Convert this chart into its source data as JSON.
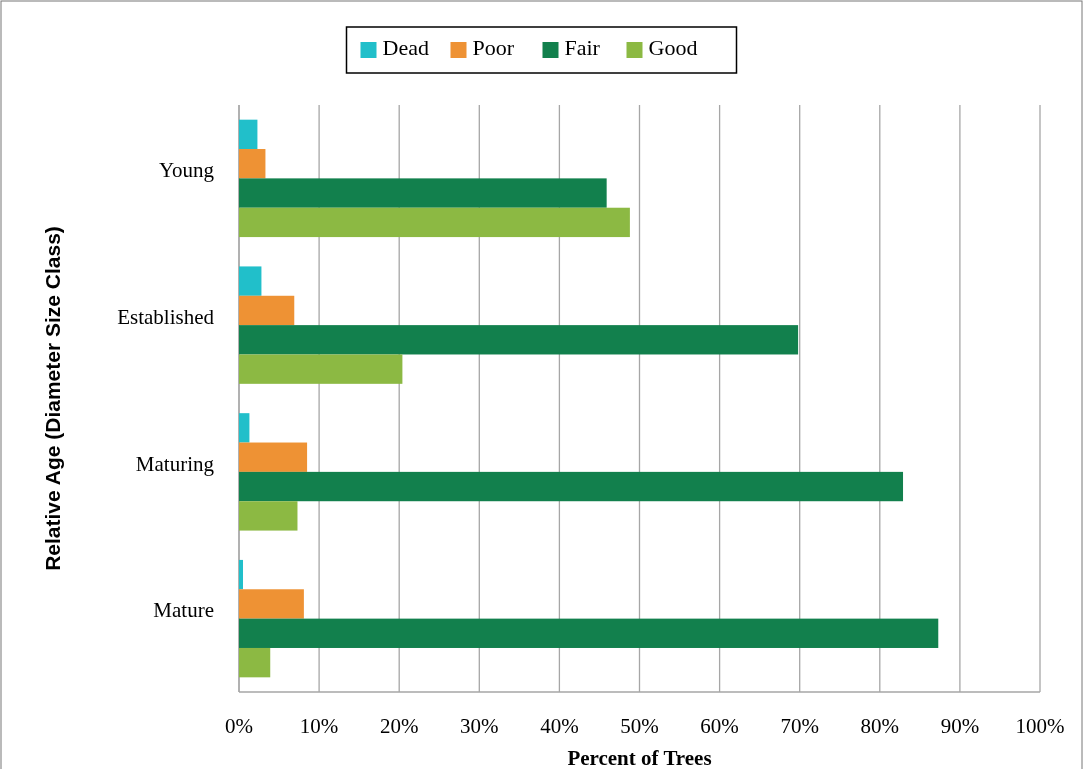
{
  "chart_data": {
    "type": "bar",
    "orientation": "horizontal",
    "xlabel": "Percent of Trees",
    "ylabel": "Relative Age (Diameter Size Class)",
    "categories": [
      "Young",
      "Established",
      "Maturing",
      "Mature"
    ],
    "series": [
      {
        "name": "Dead",
        "color": "#21bfca",
        "values": [
          2.3,
          2.8,
          1.3,
          0.5
        ]
      },
      {
        "name": "Poor",
        "color": "#ee9234",
        "values": [
          3.3,
          6.9,
          8.5,
          8.1
        ]
      },
      {
        "name": "Fair",
        "color": "#12804d",
        "values": [
          45.9,
          69.8,
          82.9,
          87.3
        ]
      },
      {
        "name": "Good",
        "color": "#8cb943",
        "values": [
          48.8,
          20.4,
          7.3,
          3.9
        ]
      }
    ],
    "xlim": [
      0,
      100
    ],
    "xticks": [
      {
        "value": 0,
        "label": "0%"
      },
      {
        "value": 10,
        "label": "10%"
      },
      {
        "value": 20,
        "label": "20%"
      },
      {
        "value": 30,
        "label": "30%"
      },
      {
        "value": 40,
        "label": "40%"
      },
      {
        "value": 50,
        "label": "50%"
      },
      {
        "value": 60,
        "label": "60%"
      },
      {
        "value": 70,
        "label": "70%"
      },
      {
        "value": 80,
        "label": "80%"
      },
      {
        "value": 90,
        "label": "90%"
      },
      {
        "value": 100,
        "label": "100%"
      }
    ],
    "grid": "x",
    "legend": "top"
  }
}
